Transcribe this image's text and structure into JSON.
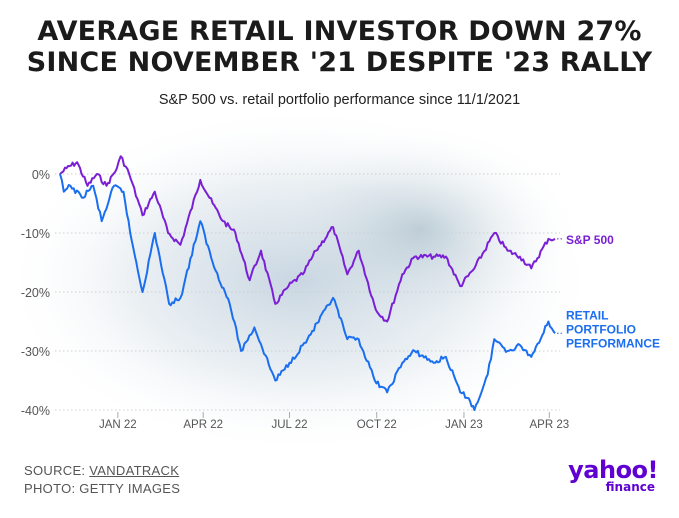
{
  "title_line1": "AVERAGE RETAIL INVESTOR DOWN 27%",
  "title_line2": "SINCE NOVEMBER '21 DESPITE '23 RALLY",
  "subtitle": "S&P 500 vs. retail portfolio performance since 11/1/2021",
  "footer": {
    "source_label": "SOURCE: ",
    "source_name": "VANDATRACK",
    "photo": "PHOTO: GETTY IMAGES"
  },
  "logo": {
    "wordmark": "yahoo!",
    "sub": "finance"
  },
  "colors": {
    "sp500": "#7a1fd6",
    "retail": "#1a6ef0",
    "title": "#1b1b1b",
    "grid": "#cfcfcf"
  },
  "chart_data": {
    "type": "line",
    "title": "AVERAGE RETAIL INVESTOR DOWN 27% SINCE NOVEMBER '21 DESPITE '23 RALLY",
    "subtitle": "S&P 500 vs. retail portfolio performance since 11/1/2021",
    "x_ticks": [
      "JAN 22",
      "APR 22",
      "JUL 22",
      "OCT 22",
      "JAN 23",
      "APR 23"
    ],
    "y_ticks": [
      "0%",
      "-10%",
      "-20%",
      "-30%",
      "-40%"
    ],
    "ylim": [
      -40,
      0
    ],
    "xlim": [
      "2021-11-01",
      "2023-04-07"
    ],
    "grid": true,
    "series": [
      {
        "name": "S&P 500",
        "label_lines": [
          "S&P 500"
        ],
        "points": [
          [
            "2021-11-01",
            0
          ],
          [
            "2021-11-08",
            1
          ],
          [
            "2021-11-19",
            2
          ],
          [
            "2021-11-30",
            -2
          ],
          [
            "2021-12-10",
            0
          ],
          [
            "2021-12-20",
            -2
          ],
          [
            "2021-12-31",
            1
          ],
          [
            "2022-01-04",
            3
          ],
          [
            "2022-01-13",
            0
          ],
          [
            "2022-01-27",
            -7
          ],
          [
            "2022-02-09",
            -3
          ],
          [
            "2022-02-23",
            -10
          ],
          [
            "2022-03-08",
            -12
          ],
          [
            "2022-03-29",
            -1
          ],
          [
            "2022-04-11",
            -5
          ],
          [
            "2022-04-22",
            -8
          ],
          [
            "2022-05-05",
            -10
          ],
          [
            "2022-05-20",
            -18
          ],
          [
            "2022-06-01",
            -13
          ],
          [
            "2022-06-16",
            -22
          ],
          [
            "2022-06-30",
            -19
          ],
          [
            "2022-07-15",
            -17
          ],
          [
            "2022-07-29",
            -13
          ],
          [
            "2022-08-16",
            -9
          ],
          [
            "2022-08-31",
            -17
          ],
          [
            "2022-09-12",
            -13
          ],
          [
            "2022-09-30",
            -23
          ],
          [
            "2022-10-12",
            -25
          ],
          [
            "2022-10-28",
            -17
          ],
          [
            "2022-11-10",
            -14
          ],
          [
            "2022-11-30",
            -14
          ],
          [
            "2022-12-13",
            -14
          ],
          [
            "2022-12-28",
            -19
          ],
          [
            "2023-01-12",
            -16
          ],
          [
            "2023-02-02",
            -10
          ],
          [
            "2023-02-16",
            -13
          ],
          [
            "2023-03-01",
            -14
          ],
          [
            "2023-03-13",
            -16
          ],
          [
            "2023-03-31",
            -11
          ],
          [
            "2023-04-07",
            -11
          ]
        ]
      },
      {
        "name": "Retail Portfolio Performance",
        "label_lines": [
          "RETAIL",
          "PORTFOLIO",
          "PERFORMANCE"
        ],
        "points": [
          [
            "2021-11-01",
            0
          ],
          [
            "2021-11-05",
            -3
          ],
          [
            "2021-11-12",
            -2
          ],
          [
            "2021-11-24",
            -4
          ],
          [
            "2021-12-06",
            -2
          ],
          [
            "2021-12-15",
            -8
          ],
          [
            "2021-12-28",
            -2
          ],
          [
            "2022-01-07",
            -3
          ],
          [
            "2022-01-14",
            -10
          ],
          [
            "2022-01-27",
            -20
          ],
          [
            "2022-02-09",
            -10
          ],
          [
            "2022-02-24",
            -22
          ],
          [
            "2022-03-08",
            -21
          ],
          [
            "2022-03-29",
            -8
          ],
          [
            "2022-04-11",
            -15
          ],
          [
            "2022-04-29",
            -22
          ],
          [
            "2022-05-11",
            -30
          ],
          [
            "2022-05-25",
            -26
          ],
          [
            "2022-06-16",
            -35
          ],
          [
            "2022-07-01",
            -32
          ],
          [
            "2022-07-20",
            -28
          ],
          [
            "2022-08-16",
            -21
          ],
          [
            "2022-08-31",
            -28
          ],
          [
            "2022-09-12",
            -28
          ],
          [
            "2022-09-29",
            -35
          ],
          [
            "2022-10-12",
            -37
          ],
          [
            "2022-10-28",
            -32
          ],
          [
            "2022-11-10",
            -30
          ],
          [
            "2022-11-30",
            -32
          ],
          [
            "2022-12-13",
            -31
          ],
          [
            "2022-12-28",
            -37
          ],
          [
            "2023-01-06",
            -38
          ],
          [
            "2023-01-12",
            -40
          ],
          [
            "2023-01-26",
            -34
          ],
          [
            "2023-02-02",
            -28
          ],
          [
            "2023-02-16",
            -30
          ],
          [
            "2023-03-01",
            -29
          ],
          [
            "2023-03-13",
            -31
          ],
          [
            "2023-03-31",
            -25
          ],
          [
            "2023-04-07",
            -27
          ]
        ]
      }
    ]
  }
}
